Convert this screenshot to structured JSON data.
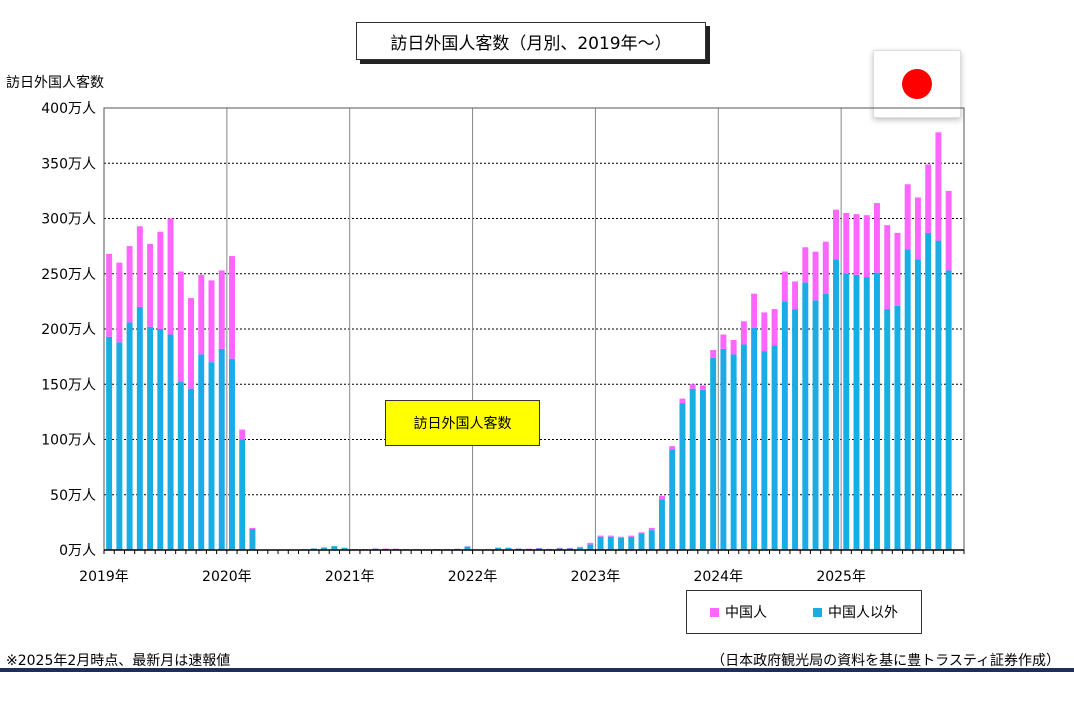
{
  "title": "訪日外国人客数（月別、2019年～）",
  "ylabel": "訪日外国人客数",
  "annotation": "訪日外国人客数",
  "footnote_left": "※2025年2月時点、最新月は速報値",
  "footnote_right": "（日本政府観光局の資料を基に豊トラスティ証券作成）",
  "flag_icon": "japan-flag-icon",
  "colors": {
    "china": "#ff66ff",
    "other": "#1aace4",
    "grid": "#000000",
    "bottom_rule": "#1f2d5a"
  },
  "chart_data": {
    "type": "bar",
    "stacked": true,
    "ylim": [
      0,
      400
    ],
    "yticks": [
      0,
      50,
      100,
      150,
      200,
      250,
      300,
      350,
      400
    ],
    "ytick_labels": [
      "0万人",
      "50万人",
      "100万人",
      "150万人",
      "200万人",
      "250万人",
      "300万人",
      "350万人",
      "400万人"
    ],
    "xtick_labels": [
      "2019年",
      "2020年",
      "2021年",
      "2022年",
      "2023年",
      "2024年",
      "2025年"
    ],
    "months_per_year": 12,
    "total_slots": 84,
    "grid": true,
    "legend": "bottom-right",
    "series": [
      {
        "name": "中国人以外",
        "color": "#1aace4",
        "values": [
          193,
          188,
          206,
          220,
          202,
          200,
          195,
          152,
          146,
          177,
          170,
          182,
          173,
          100,
          19,
          0.2,
          0.2,
          0.3,
          0.4,
          0.7,
          1.4,
          2.3,
          3.5,
          2.0,
          0.4,
          0.6,
          1.2,
          0.9,
          0.9,
          0.5,
          0.6,
          0.5,
          0.7,
          0.6,
          0.9,
          3.1,
          0.3,
          0.5,
          2.0,
          1.8,
          1.2,
          0.9,
          1.4,
          0.8,
          1.5,
          1.3,
          2.1,
          5.0,
          12,
          12,
          11,
          12,
          15,
          18,
          46,
          91,
          133,
          146,
          145,
          174,
          182,
          177,
          186,
          201,
          180,
          185,
          225,
          218,
          242,
          226,
          232,
          263,
          250,
          249,
          247,
          251,
          218,
          221,
          272,
          263,
          287,
          280,
          253
        ]
      },
      {
        "name": "中国人",
        "color": "#ff66ff",
        "values": [
          75,
          72,
          69,
          73,
          75,
          88,
          105,
          100,
          82,
          72,
          74,
          71,
          93,
          9,
          1,
          0,
          0,
          0,
          0,
          0,
          0,
          0,
          0,
          0,
          0.4,
          0.3,
          0.3,
          0.4,
          0.3,
          0.3,
          0.3,
          0.2,
          0.2,
          0.2,
          0.2,
          0.3,
          0.2,
          0.2,
          0.3,
          0.3,
          0.3,
          0.3,
          0.5,
          0.2,
          0.5,
          0.6,
          0.8,
          1.5,
          1,
          1,
          1,
          1,
          1,
          2,
          3,
          3,
          4,
          4,
          4,
          7,
          13,
          13,
          21,
          31,
          35,
          33,
          27,
          25,
          32,
          44,
          47,
          45,
          55,
          55,
          56,
          63,
          76,
          66,
          59,
          56,
          62,
          98,
          72
        ]
      }
    ]
  },
  "legend_items": [
    {
      "label": "中国人",
      "color": "#ff66ff"
    },
    {
      "label": "中国人以外",
      "color": "#1aace4"
    }
  ]
}
